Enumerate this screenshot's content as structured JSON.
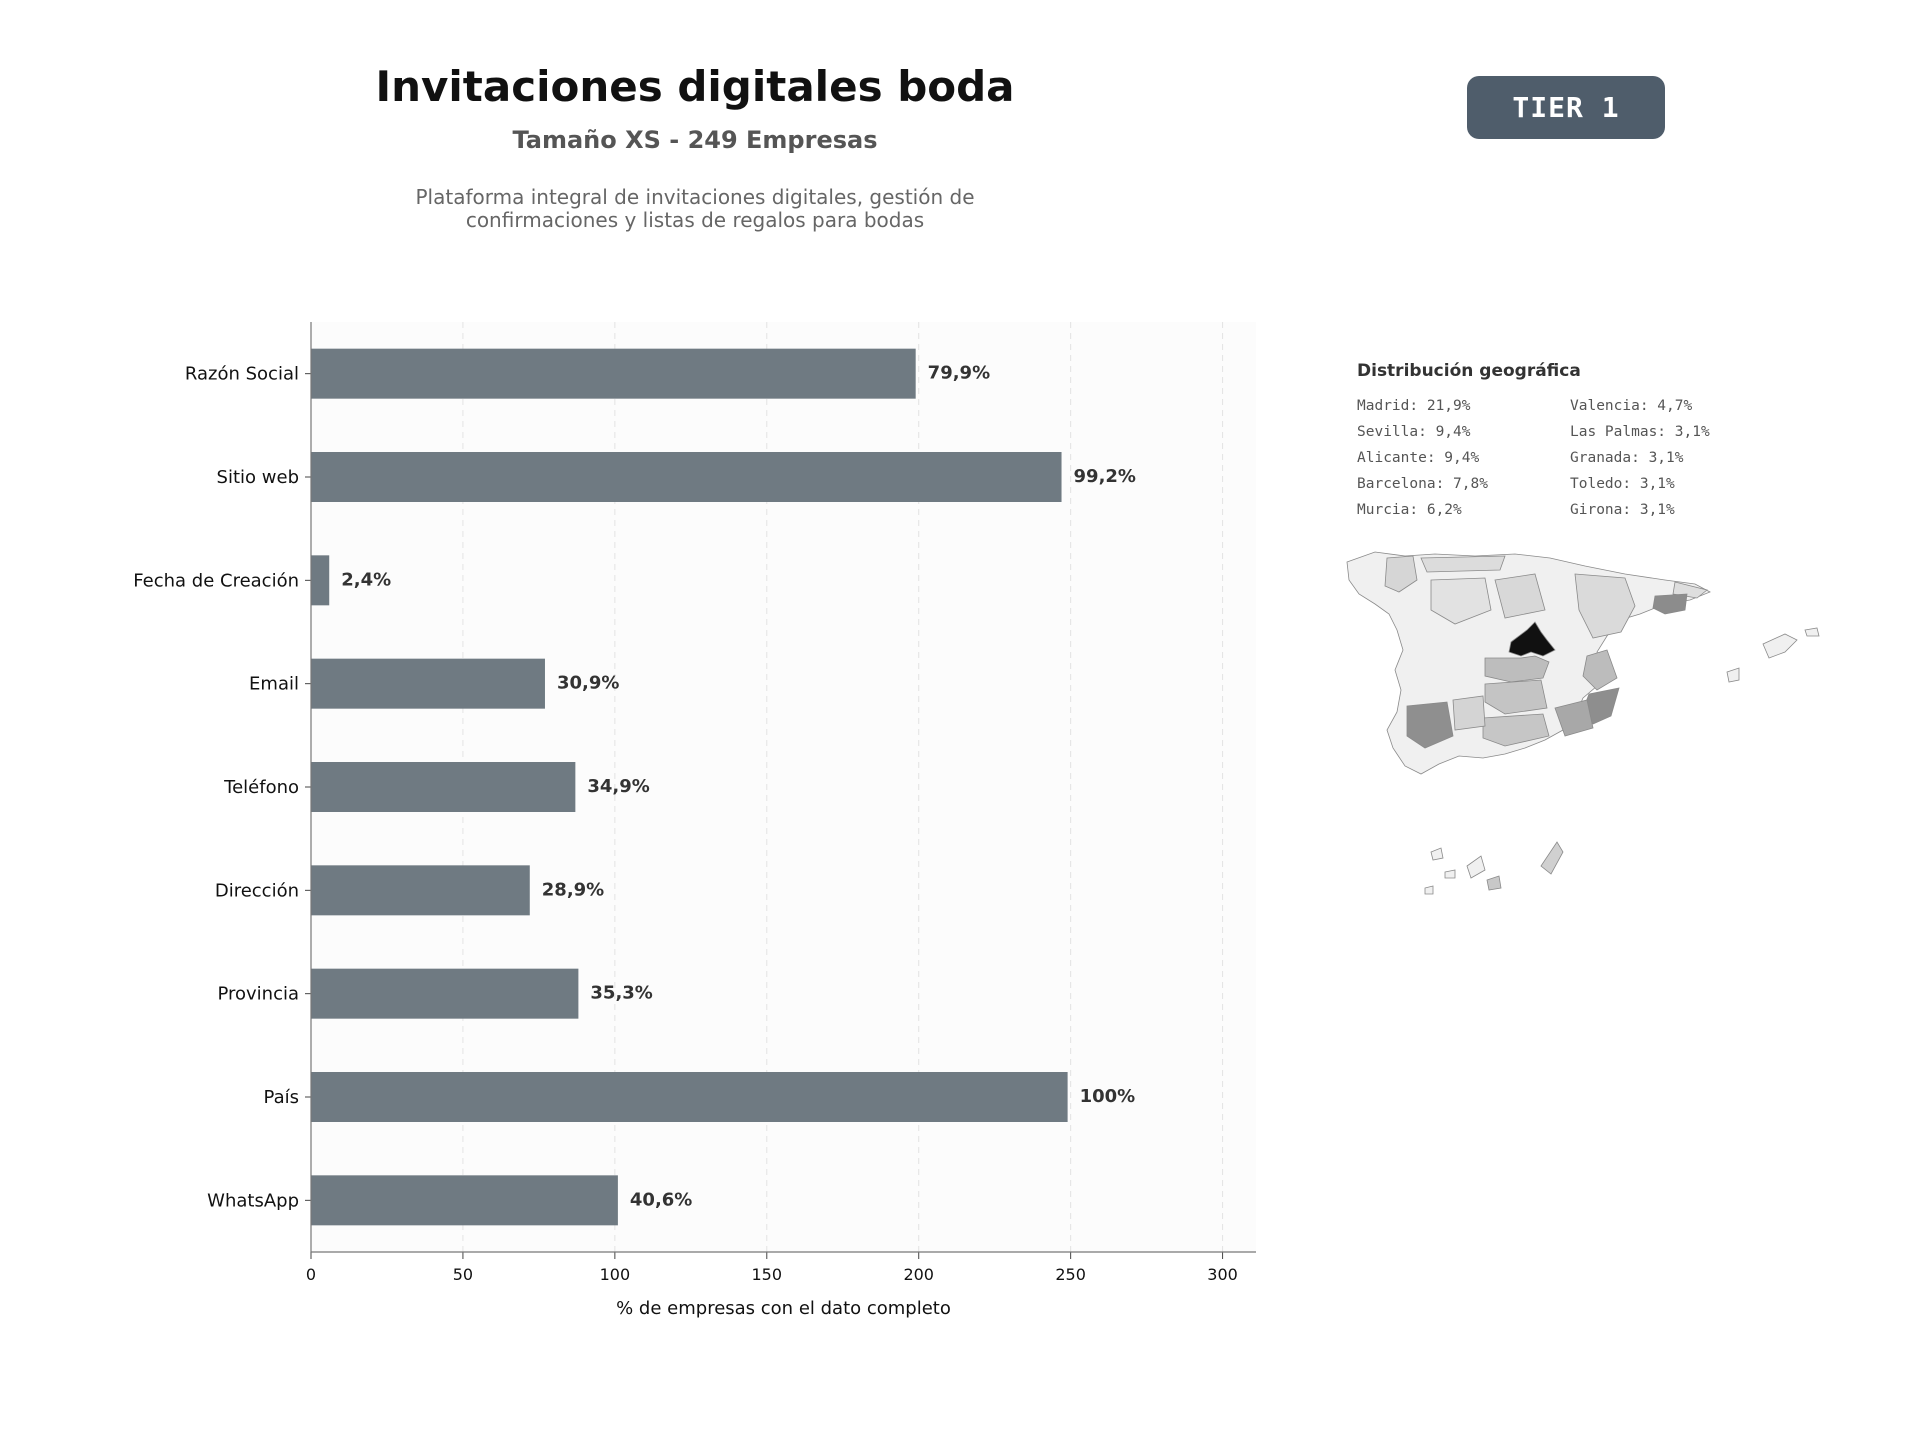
{
  "header": {
    "title": "Invitaciones digitales boda",
    "subtitle": "Tamaño XS - 249 Empresas",
    "description": "Plataforma integral de invitaciones digitales, gestión de confirmaciones y listas de regalos para bodas",
    "tier": "TIER 1"
  },
  "colors": {
    "bar": "#6f7a82",
    "badge": "#4f5d6b",
    "highlight_region": "#111111"
  },
  "chart_data": {
    "type": "bar",
    "orientation": "horizontal",
    "categories": [
      "Razón Social",
      "Sitio web",
      "Fecha de Creación",
      "Email",
      "Teléfono",
      "Dirección",
      "Provincia",
      "País",
      "WhatsApp"
    ],
    "values": [
      199,
      247,
      6,
      77,
      87,
      72,
      88,
      249,
      101
    ],
    "data_labels": [
      "79,9%",
      "99,2%",
      "2,4%",
      "30,9%",
      "34,9%",
      "28,9%",
      "35,3%",
      "100%",
      "40,6%"
    ],
    "xlabel": "% de empresas con el dato completo",
    "xlim": [
      0,
      311
    ],
    "xticks": [
      0,
      50,
      100,
      150,
      200,
      250,
      300
    ],
    "grid": "vertical dashed"
  },
  "geo": {
    "title": "Distribución geográfica",
    "items": [
      "Madrid: 21,9%",
      "Valencia: 4,7%",
      "Sevilla: 9,4%",
      "Las Palmas: 3,1%",
      "Alicante: 9,4%",
      "Granada: 3,1%",
      "Barcelona: 7,8%",
      "Toledo: 3,1%",
      "Murcia: 6,2%",
      "Girona: 3,1%"
    ]
  }
}
